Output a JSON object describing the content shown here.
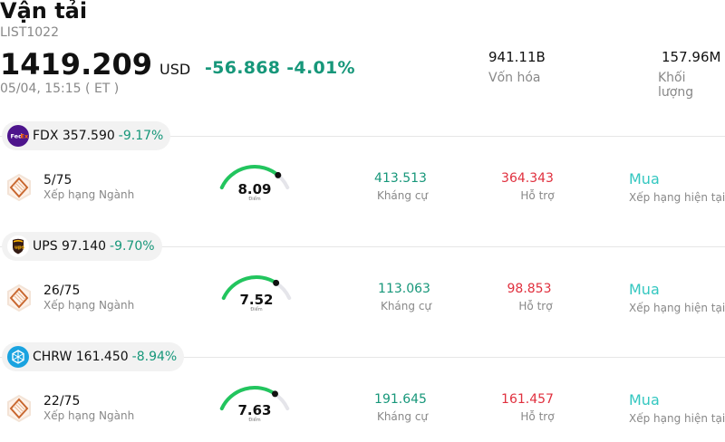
{
  "header": {
    "title": "Vận tải",
    "code": "LIST1022",
    "price": "1419.209",
    "currency": "USD",
    "change": "-56.868",
    "change_pct": "-4.01%",
    "timestamp": "05/04, 15:15  ( ET )",
    "stats": [
      {
        "value": "941.11B",
        "label": "Vốn hóa"
      },
      {
        "value": "157.96M",
        "label": "Khối lượng"
      }
    ]
  },
  "stocks": [
    {
      "ticker": "FDX 357.590",
      "pct": "-9.17%",
      "logo_icon": "fedex-logo-icon",
      "logo_color": "#4d148c",
      "rank": "5/75",
      "rank_label": "Xếp hạng Ngành",
      "score": "8.09",
      "score_label": "Điểm",
      "score_level": 0.809,
      "resistance": "413.513",
      "resistance_label": "Kháng cự",
      "support": "364.343",
      "support_label": "Hỗ trợ",
      "recommendation": "Mua",
      "recommendation_label": "Xếp hạng hiện tại"
    },
    {
      "ticker": "UPS 97.140",
      "pct": "-9.70%",
      "logo_icon": "ups-logo-icon",
      "logo_color": "#351c15",
      "rank": "26/75",
      "rank_label": "Xếp hạng Ngành",
      "score": "7.52",
      "score_label": "Điểm",
      "score_level": 0.752,
      "resistance": "113.063",
      "resistance_label": "Kháng cự",
      "support": "98.853",
      "support_label": "Hỗ trợ",
      "recommendation": "Mua",
      "recommendation_label": "Xếp hạng hiện tại"
    },
    {
      "ticker": "CHRW 161.450",
      "pct": "-8.94%",
      "logo_icon": "chrw-logo-icon",
      "logo_color": "#1aa3e0",
      "rank": "22/75",
      "rank_label": "Xếp hạng Ngành",
      "score": "7.63",
      "score_label": "Điểm",
      "score_level": 0.763,
      "resistance": "191.645",
      "resistance_label": "Kháng cự",
      "support": "161.457",
      "support_label": "Hỗ trợ",
      "recommendation": "Mua",
      "recommendation_label": "Xếp hạng hiện tại"
    }
  ],
  "colors": {
    "positive": "#17977a",
    "negative": "#e0303e",
    "buy": "#33c7c0",
    "gauge_fill": "#22c55e",
    "gauge_track": "#e5e5ea"
  }
}
